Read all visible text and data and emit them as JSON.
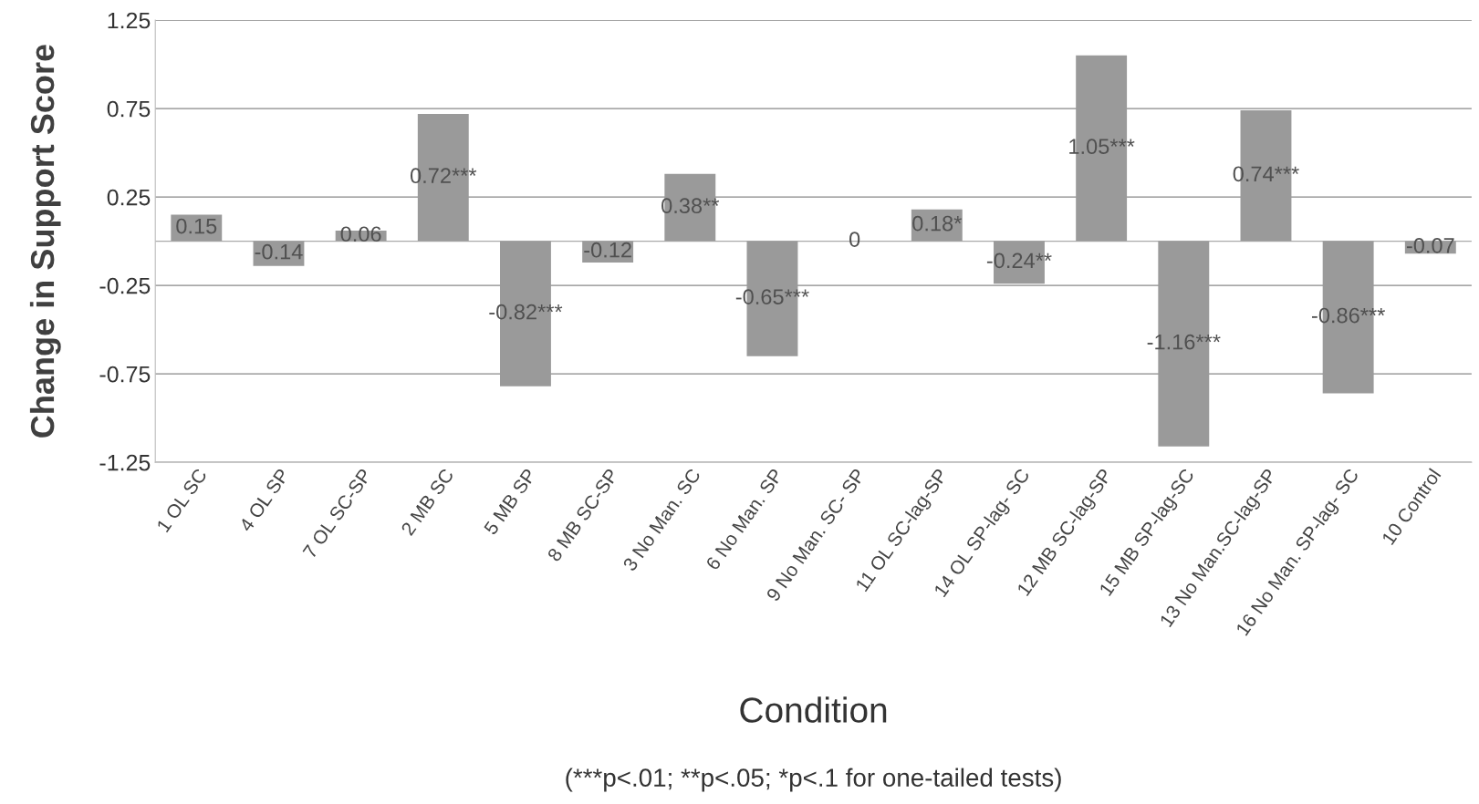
{
  "chart_data": {
    "type": "bar",
    "xlabel": "Condition",
    "ylabel": "Change in Support Score",
    "categories": [
      "1 OL SC",
      "4 OL SP",
      "7 OL SC-SP",
      "2 MB SC",
      "5 MB SP",
      "8 MB SC-SP",
      "3 No Man. SC",
      "6 No Man. SP",
      "9 No Man. SC- SP",
      "11 OL SC-lag-SP",
      "14 OL SP-lag- SC",
      "12 MB SC-lag-SP",
      "15 MB SP-lag-SC",
      "13 No Man.SC-lag-SP",
      "16 No Man. SP-lag- SC",
      "10 Control"
    ],
    "values": [
      0.15,
      -0.14,
      0.06,
      0.72,
      -0.82,
      -0.12,
      0.38,
      -0.65,
      0,
      0.18,
      -0.24,
      1.05,
      -1.16,
      0.74,
      -0.86,
      -0.07
    ],
    "value_labels": [
      "0.15",
      "-0.14",
      "0.06",
      "0.72***",
      "-0.82***",
      "-0.12",
      "0.38**",
      "-0.65***",
      "0",
      "0.18*",
      "-0.24**",
      "1.05***",
      "-1.16***",
      "0.74***",
      "-0.86***",
      "-0.07"
    ],
    "color": "#9a9a9a",
    "ylim": [
      -1.25,
      1.25
    ],
    "yticks": [
      -1.25,
      -0.75,
      -0.25,
      0.25,
      0.75,
      1.25
    ],
    "grid": "y",
    "annotations": [
      "(***p<.01; **p<.05; *p<.1 for one-tailed tests)"
    ]
  }
}
